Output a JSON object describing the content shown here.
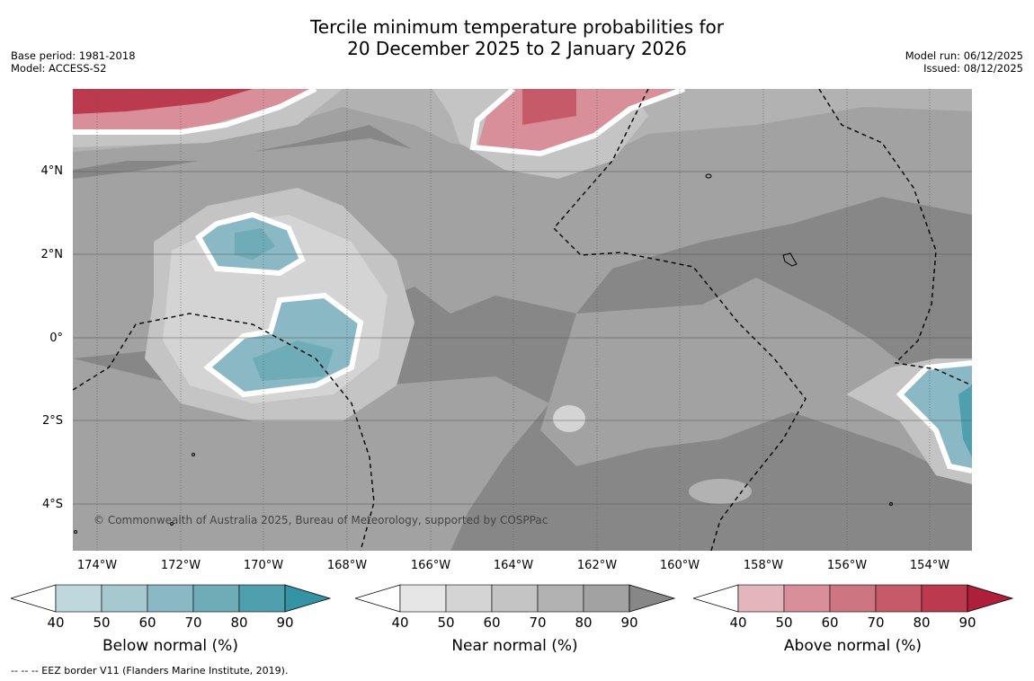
{
  "title": {
    "line1": "Tercile minimum temperature probabilities for",
    "line2": "20 December 2025 to 2 January 2026"
  },
  "meta": {
    "base_period": "Base period: 1981-2018",
    "model": "Model: ACCESS-S2",
    "model_run": "Model run: 06/12/2025",
    "issued": "Issued: 08/12/2025"
  },
  "map": {
    "y_labels": [
      "4°N",
      "2°N",
      "0°",
      "2°S",
      "4°S"
    ],
    "x_labels": [
      "174°W",
      "172°W",
      "170°W",
      "168°W",
      "166°W",
      "164°W",
      "162°W",
      "160°W",
      "158°W",
      "156°W",
      "154°W"
    ],
    "copyright": "© Commonwealth of Australia 2025, Bureau of Meteorology, supported by COSPPac"
  },
  "colorbars": [
    {
      "label": "Below normal (%)",
      "ticks": [
        "40",
        "50",
        "60",
        "70",
        "80",
        "90"
      ],
      "colors": [
        "#bfd8de",
        "#a6c8cf",
        "#8ab8c4",
        "#6eacb8",
        "#4f9fae",
        "#3593a6"
      ]
    },
    {
      "label": "Near normal (%)",
      "ticks": [
        "40",
        "50",
        "60",
        "70",
        "80",
        "90"
      ],
      "colors": [
        "#e6e6e6",
        "#d4d4d4",
        "#c4c4c4",
        "#b2b2b2",
        "#a2a2a2",
        "#878787"
      ]
    },
    {
      "label": "Above normal (%)",
      "ticks": [
        "40",
        "50",
        "60",
        "70",
        "80",
        "90"
      ],
      "colors": [
        "#e3b6bd",
        "#d98f99",
        "#cd7581",
        "#c65a69",
        "#bb3a4e",
        "#ad1f3a"
      ]
    }
  ],
  "footnote": "--  --  -- EEZ border V11 (Flanders Marine Institute, 2019)."
}
